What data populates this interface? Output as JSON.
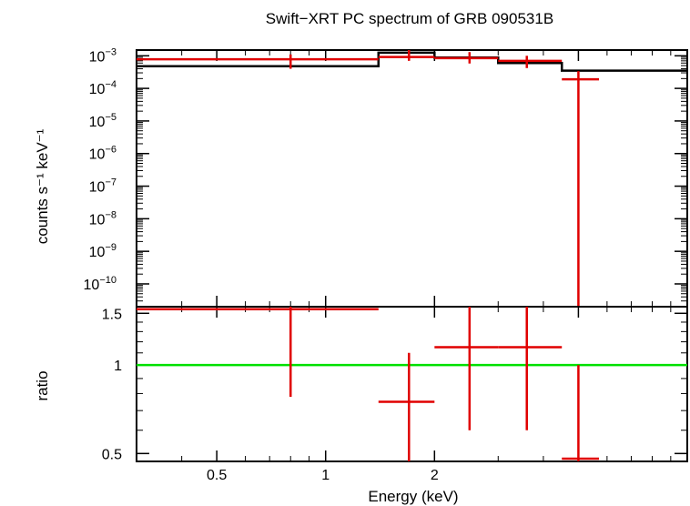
{
  "title": "Swift−XRT PC spectrum of GRB 090531B",
  "colors": {
    "data": "#e00000",
    "model": "#000000",
    "reference": "#00e000",
    "frame": "#000000"
  },
  "chart_data": [
    {
      "type": "line",
      "panel": "spectrum",
      "ylabel": "counts s⁻¹ keV⁻¹",
      "xscale": "log",
      "yscale": "log",
      "xlim": [
        0.3,
        10.0
      ],
      "ylim": [
        2e-11,
        0.0015
      ],
      "yticks": [
        {
          "value": 0.001,
          "base": "10",
          "exp": "−3"
        },
        {
          "value": 0.0001,
          "base": "10",
          "exp": "−4"
        },
        {
          "value": 1e-05,
          "base": "10",
          "exp": "−5"
        },
        {
          "value": 1e-06,
          "base": "10",
          "exp": "−6"
        },
        {
          "value": 1e-07,
          "base": "10",
          "exp": "−7"
        },
        {
          "value": 1e-08,
          "base": "10",
          "exp": "−8"
        },
        {
          "value": 1e-09,
          "base": "10",
          "exp": "−9"
        },
        {
          "value": 1e-10,
          "base": "10",
          "exp": "−10"
        }
      ],
      "data_points": [
        {
          "x": 0.8,
          "xlo": 0.3,
          "xhi": 1.4,
          "y": 0.00078,
          "ylo": 0.0004,
          "yhi": 0.0011
        },
        {
          "x": 1.7,
          "xlo": 1.4,
          "xhi": 2.0,
          "y": 0.00092,
          "ylo": 0.0007,
          "yhi": 0.0015
        },
        {
          "x": 2.5,
          "xlo": 2.0,
          "xhi": 3.0,
          "y": 0.00085,
          "ylo": 0.00058,
          "yhi": 0.0013
        },
        {
          "x": 3.6,
          "xlo": 3.0,
          "xhi": 4.5,
          "y": 0.0007,
          "ylo": 0.00042,
          "yhi": 0.001
        },
        {
          "x": 5.0,
          "xlo": 4.5,
          "xhi": 5.7,
          "y": 0.00019,
          "ylo": 2e-11,
          "yhi": 0.00034
        }
      ],
      "model_steps": [
        {
          "xlo": 0.3,
          "xhi": 1.4,
          "y": 0.00048
        },
        {
          "xlo": 1.4,
          "xhi": 2.0,
          "y": 0.00125
        },
        {
          "xlo": 2.0,
          "xhi": 3.0,
          "y": 0.00088
        },
        {
          "xlo": 3.0,
          "xhi": 4.5,
          "y": 0.0006
        },
        {
          "xlo": 4.5,
          "xhi": 10.0,
          "y": 0.00035
        }
      ]
    },
    {
      "type": "line",
      "panel": "ratio",
      "xlabel": "Energy (keV)",
      "ylabel": "ratio",
      "xscale": "log",
      "yscale": "log",
      "xlim": [
        0.3,
        10.0
      ],
      "ylim": [
        0.47,
        1.58
      ],
      "yticks": [
        {
          "value": 1.5,
          "label": "1.5"
        },
        {
          "value": 1.0,
          "label": "1"
        },
        {
          "value": 0.5,
          "label": "0.5"
        }
      ],
      "xticks": [
        {
          "value": 0.5,
          "label": "0.5"
        },
        {
          "value": 1,
          "label": "1"
        },
        {
          "value": 2,
          "label": "2"
        }
      ],
      "reference_line": 1.0,
      "data_points": [
        {
          "x": 0.8,
          "xlo": 0.3,
          "xhi": 1.4,
          "y": 1.55,
          "ylo": 0.78,
          "yhi": 1.58
        },
        {
          "x": 1.7,
          "xlo": 1.4,
          "xhi": 2.0,
          "y": 0.75,
          "ylo": 0.47,
          "yhi": 1.1
        },
        {
          "x": 2.5,
          "xlo": 2.0,
          "xhi": 3.0,
          "y": 1.15,
          "ylo": 0.6,
          "yhi": 1.58
        },
        {
          "x": 3.6,
          "xlo": 3.0,
          "xhi": 4.5,
          "y": 1.15,
          "ylo": 0.6,
          "yhi": 1.58
        },
        {
          "x": 5.0,
          "xlo": 4.5,
          "xhi": 5.7,
          "y": 0.48,
          "ylo": 0.47,
          "yhi": 1.0
        }
      ]
    }
  ]
}
